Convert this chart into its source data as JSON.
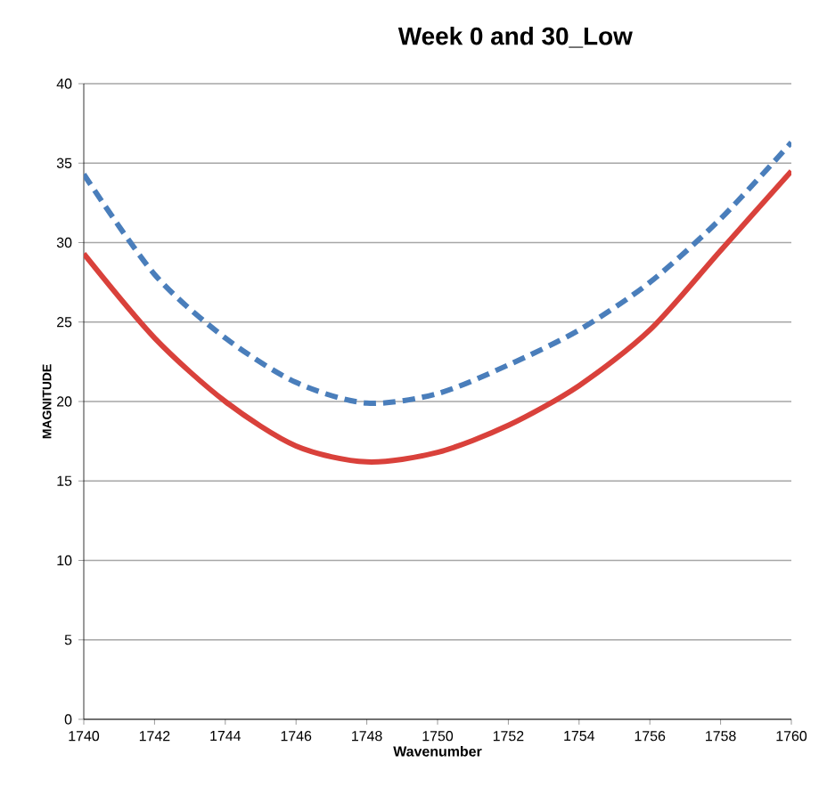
{
  "chart_data": {
    "type": "line",
    "title": "Week 0 and 30_Low",
    "xlabel": "Wavenumber",
    "ylabel": "MAGNITUDE",
    "x": [
      1740,
      1742,
      1744,
      1746,
      1748,
      1750,
      1752,
      1754,
      1756,
      1758,
      1760
    ],
    "series": [
      {
        "color": "#d9413b",
        "line_style": "solid",
        "values": [
          29.3,
          24,
          20,
          17.2,
          16.2,
          16.8,
          18.5,
          21,
          24.5,
          29.5,
          34.5
        ]
      },
      {
        "color": "#4a7ebb",
        "line_style": "dashed",
        "values": [
          34.3,
          28,
          24,
          21.2,
          19.9,
          20.5,
          22.3,
          24.5,
          27.5,
          31.5,
          36.3
        ]
      }
    ],
    "xlim": [
      1740,
      1760
    ],
    "xticks": [
      1740,
      1742,
      1744,
      1746,
      1748,
      1750,
      1752,
      1754,
      1756,
      1758,
      1760
    ],
    "ylim": [
      0,
      40
    ],
    "yticks": [
      0,
      5,
      10,
      15,
      20,
      25,
      30,
      35,
      40
    ],
    "grid": "y",
    "marker": "none"
  }
}
